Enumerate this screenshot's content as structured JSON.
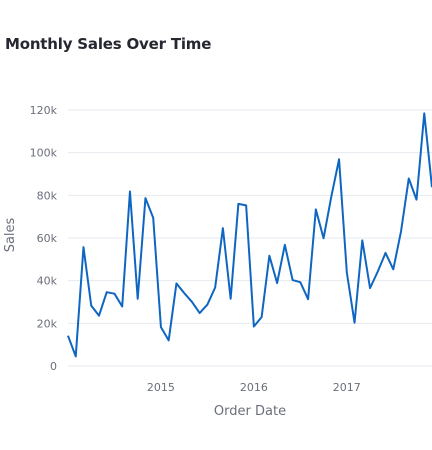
{
  "page": {
    "title": "Monthly Sales Over Time"
  },
  "colors": {
    "line": "#0f66c2",
    "grid": "#e6e9ef",
    "text": "#6b6f7b"
  },
  "chart_data": {
    "type": "line",
    "title": "Monthly Sales Over Time",
    "xlabel": "Order Date",
    "ylabel": "Sales",
    "ylim": [
      0,
      120000
    ],
    "yticks": [
      0,
      20000,
      40000,
      60000,
      80000,
      100000,
      120000
    ],
    "ytick_labels": [
      "0",
      "20k",
      "40k",
      "60k",
      "80k",
      "100k",
      "120k"
    ],
    "xticks": [
      "2015-01",
      "2016-01",
      "2017-01"
    ],
    "xtick_labels": [
      "2015",
      "2016",
      "2017"
    ],
    "xlim": [
      "2014-01",
      "2017-12"
    ],
    "grid": true,
    "legend": "none",
    "series": [
      {
        "x": [
          "2014-01",
          "2014-02",
          "2014-03",
          "2014-04",
          "2014-05",
          "2014-06",
          "2014-07",
          "2014-08",
          "2014-09",
          "2014-10",
          "2014-11",
          "2014-12",
          "2015-01",
          "2015-02",
          "2015-03",
          "2015-04",
          "2015-05",
          "2015-06",
          "2015-07",
          "2015-08",
          "2015-09",
          "2015-10",
          "2015-11",
          "2015-12",
          "2016-01",
          "2016-02",
          "2016-03",
          "2016-04",
          "2016-05",
          "2016-06",
          "2016-07",
          "2016-08",
          "2016-09",
          "2016-10",
          "2016-11",
          "2016-12",
          "2017-01",
          "2017-02",
          "2017-03",
          "2017-04",
          "2017-05",
          "2017-06",
          "2017-07",
          "2017-08",
          "2017-09",
          "2017-10",
          "2017-11",
          "2017-12"
        ],
        "values": [
          14200,
          4500,
          55700,
          28300,
          23600,
          34600,
          33900,
          27900,
          81800,
          31500,
          78700,
          69500,
          18200,
          12000,
          38700,
          34200,
          30100,
          24800,
          28800,
          36800,
          64600,
          31500,
          76000,
          75300,
          18500,
          22900,
          51700,
          38900,
          56800,
          40300,
          39300,
          31300,
          73400,
          59900,
          79400,
          96900,
          43900,
          20300,
          58900,
          36500,
          44300,
          53000,
          45300,
          63100,
          87900,
          78000,
          118400,
          83800
        ]
      }
    ]
  }
}
